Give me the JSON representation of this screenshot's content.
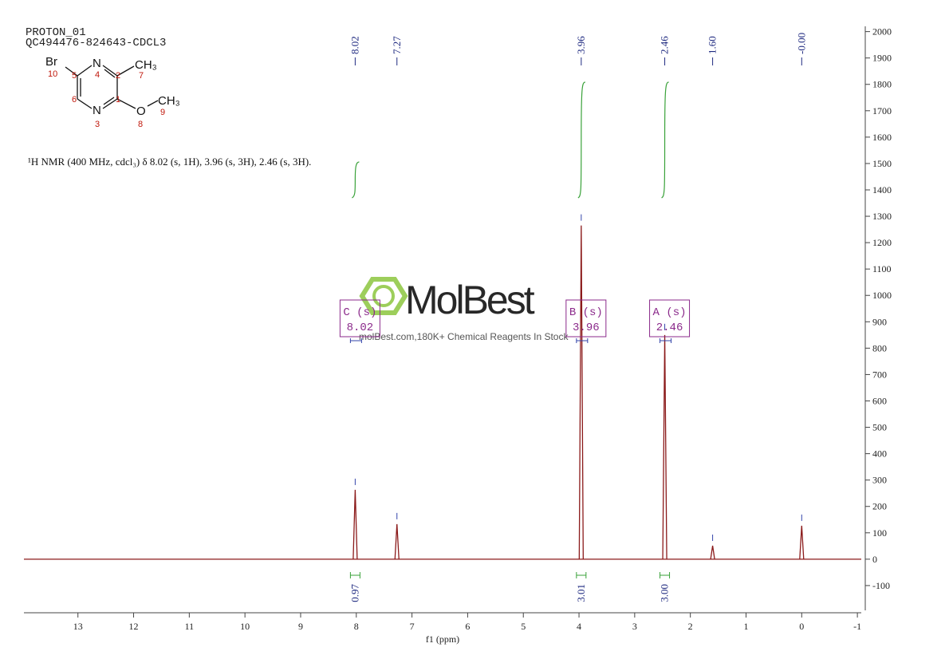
{
  "chart_data": {
    "type": "spectrum",
    "header": [
      "PROTON_01",
      "QC494476-824643-CDCL3"
    ],
    "molecule": {
      "atoms": [
        "Br",
        "N",
        "CH₃",
        "N",
        "O",
        "CH₃"
      ],
      "numbers": [
        "10",
        "5",
        "4",
        "2",
        "7",
        "6",
        "1",
        "3",
        "8",
        "9"
      ]
    },
    "description": "¹H NMR (400 MHz, cdcl₃) δ 8.02 (s, 1H), 3.96 (s, 3H), 2.46 (s, 3H).",
    "watermark": {
      "brand": "MolBest",
      "tagline": "molBest.com,180K+ Chemical Reagents In Stock"
    },
    "xlabel": "f1 (ppm)",
    "x": [
      8.02,
      7.27,
      3.96,
      2.46,
      1.6,
      0.0
    ],
    "values": [
      263,
      133,
      1265,
      850,
      51,
      127
    ],
    "color": "#8b1a1a",
    "peak_labels": [
      "8.02",
      "7.27",
      "3.96",
      "2.46",
      "1.60",
      "-0.00"
    ],
    "integrals": {
      "x": [
        8.02,
        3.96,
        2.46
      ],
      "values": [
        0.97,
        3.01,
        3.0
      ],
      "value_labels": [
        "0.97",
        "3.01",
        "3.00"
      ]
    },
    "multiplets": [
      {
        "label": "C (s)",
        "shift": 8.02
      },
      {
        "label": "B (s)",
        "shift": 3.96
      },
      {
        "label": "A (s)",
        "shift": 2.46
      }
    ],
    "xlim": [
      13.97,
      -1.07
    ],
    "xticks": [
      13,
      12,
      11,
      10,
      9,
      8,
      7,
      6,
      5,
      4,
      3,
      2,
      1,
      0,
      -1
    ],
    "ylim": [
      -194,
      2020
    ],
    "yticks": [
      -100,
      0,
      100,
      200,
      300,
      400,
      500,
      600,
      700,
      800,
      900,
      1000,
      1100,
      1200,
      1300,
      1400,
      1500,
      1600,
      1700,
      1800,
      1900,
      2000
    ]
  }
}
